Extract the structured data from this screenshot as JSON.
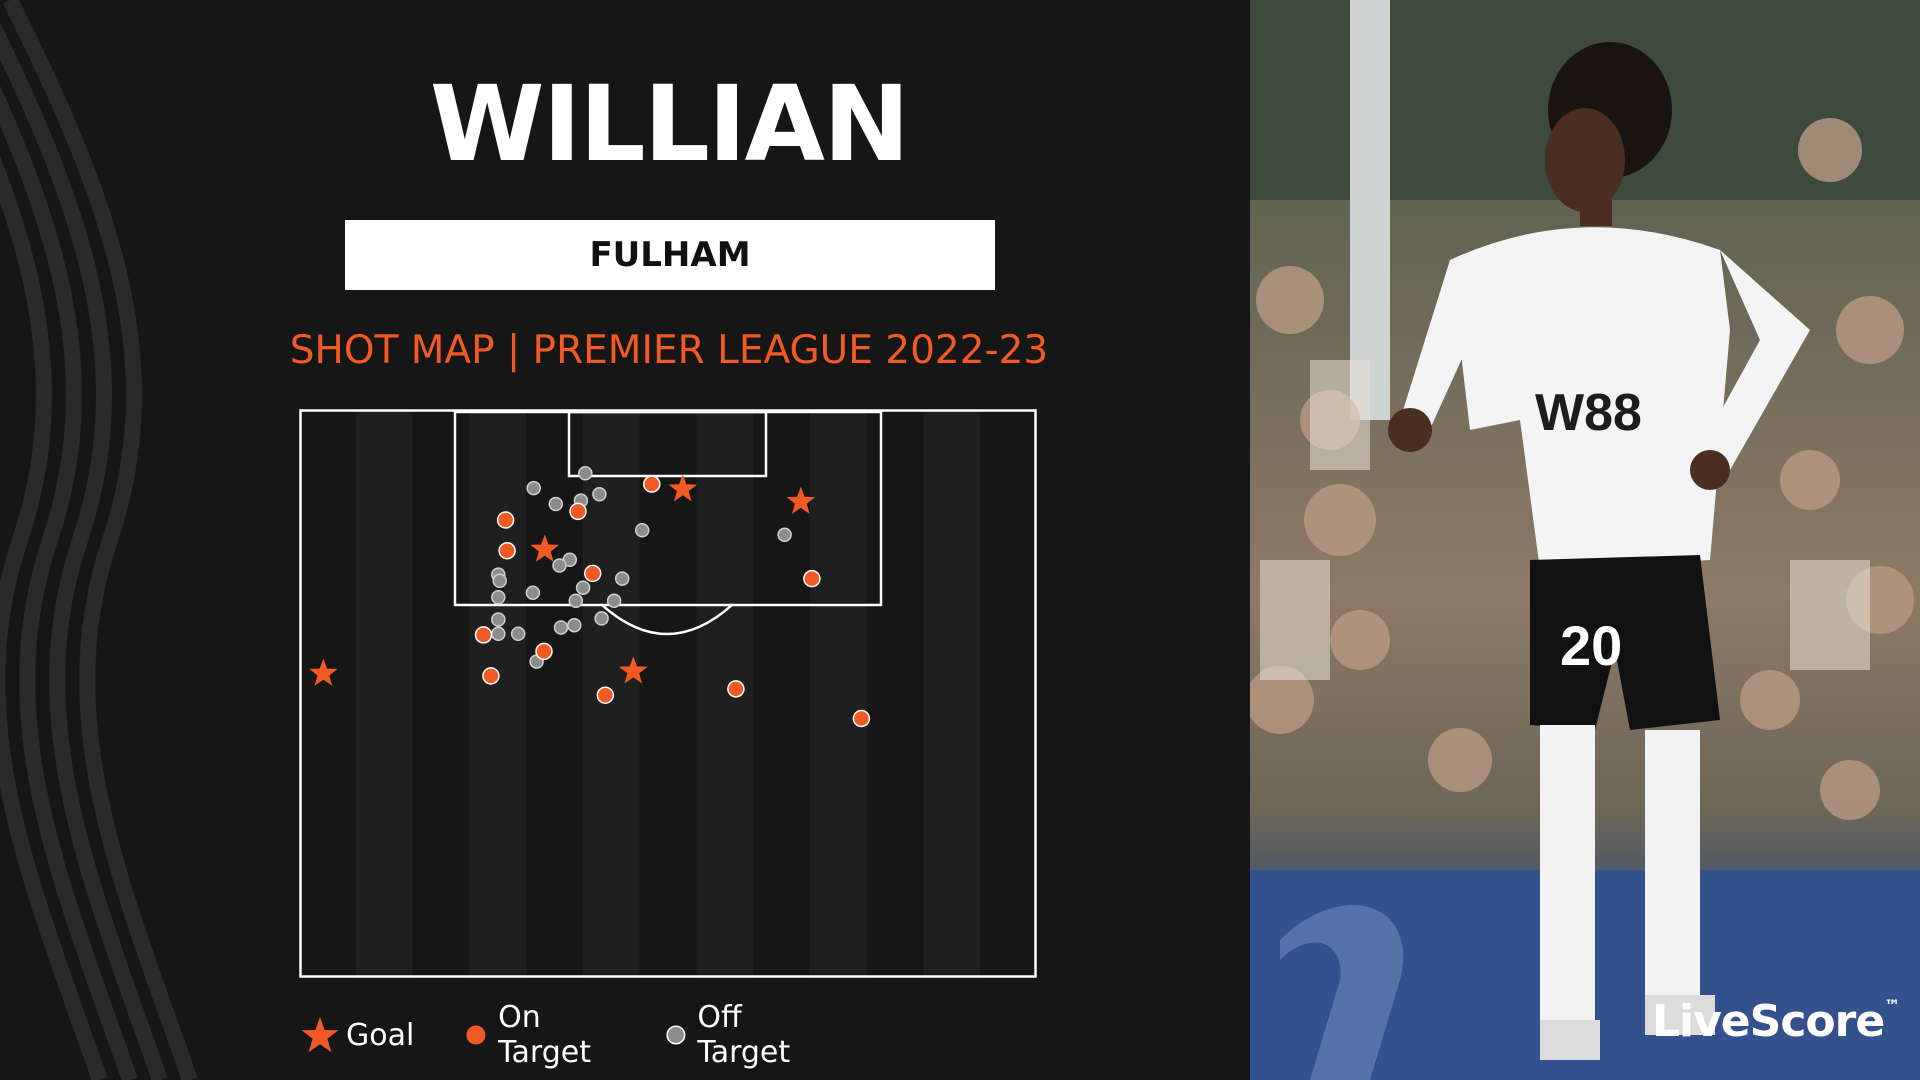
{
  "header": {
    "player_name": "WILLIAN",
    "team": "FULHAM",
    "subtitle": "SHOT MAP | PREMIER LEAGUE 2022-23"
  },
  "legend": [
    {
      "label": "Goal",
      "marker": "star",
      "color": "#f15a24"
    },
    {
      "label": "On Target",
      "marker": "circle",
      "color": "#f15a24"
    },
    {
      "label": "Off Target",
      "marker": "circle",
      "color": "#8c8c8c"
    }
  ],
  "branding": {
    "logo_text": "LiveScore",
    "trademark": "™"
  },
  "photo": {
    "shirt_number": "20",
    "sponsor": "W88"
  },
  "colors": {
    "accent": "#f15a24",
    "off_target": "#8c8c8c",
    "background": "#161616",
    "pitch_line": "#ffffff"
  },
  "chart_data": {
    "type": "scatter",
    "title": "SHOT MAP | PREMIER LEAGUE 2022-23",
    "xlabel": "",
    "ylabel": "",
    "xlim": [
      0,
      100
    ],
    "ylim": [
      0,
      100
    ],
    "grid": false,
    "legend_position": "bottom",
    "series": [
      {
        "name": "Goal",
        "marker": "star",
        "color": "#f15a24",
        "points": [
          {
            "x": 52.0,
            "y": 14.1
          },
          {
            "x": 68.0,
            "y": 16.3
          },
          {
            "x": 33.3,
            "y": 24.7
          },
          {
            "x": 45.3,
            "y": 46.1
          },
          {
            "x": 3.3,
            "y": 46.5
          }
        ]
      },
      {
        "name": "On Target",
        "marker": "circle",
        "color": "#f15a24",
        "points": [
          {
            "x": 47.8,
            "y": 13.2
          },
          {
            "x": 37.8,
            "y": 18.0
          },
          {
            "x": 28.0,
            "y": 19.5
          },
          {
            "x": 28.2,
            "y": 24.9
          },
          {
            "x": 39.8,
            "y": 28.9
          },
          {
            "x": 69.5,
            "y": 29.8
          },
          {
            "x": 25.0,
            "y": 39.7
          },
          {
            "x": 33.2,
            "y": 42.6
          },
          {
            "x": 26.0,
            "y": 46.9
          },
          {
            "x": 41.5,
            "y": 50.3
          },
          {
            "x": 59.2,
            "y": 49.2
          },
          {
            "x": 76.2,
            "y": 54.4
          }
        ]
      },
      {
        "name": "Off Target",
        "marker": "circle",
        "color": "#8c8c8c",
        "points": [
          {
            "x": 38.8,
            "y": 11.3
          },
          {
            "x": 31.8,
            "y": 13.9
          },
          {
            "x": 40.7,
            "y": 15.0
          },
          {
            "x": 34.8,
            "y": 16.7
          },
          {
            "x": 38.2,
            "y": 16.1
          },
          {
            "x": 46.5,
            "y": 21.3
          },
          {
            "x": 65.8,
            "y": 22.1
          },
          {
            "x": 36.7,
            "y": 26.5
          },
          {
            "x": 35.3,
            "y": 27.5
          },
          {
            "x": 27.0,
            "y": 29.1
          },
          {
            "x": 27.2,
            "y": 30.2
          },
          {
            "x": 43.8,
            "y": 29.8
          },
          {
            "x": 38.5,
            "y": 31.4
          },
          {
            "x": 31.7,
            "y": 32.3
          },
          {
            "x": 37.5,
            "y": 33.7
          },
          {
            "x": 27.0,
            "y": 33.1
          },
          {
            "x": 42.7,
            "y": 33.7
          },
          {
            "x": 41.0,
            "y": 36.8
          },
          {
            "x": 27.0,
            "y": 37.0
          },
          {
            "x": 37.3,
            "y": 38.0
          },
          {
            "x": 35.5,
            "y": 38.4
          },
          {
            "x": 29.7,
            "y": 39.5
          },
          {
            "x": 27.0,
            "y": 39.5
          },
          {
            "x": 32.2,
            "y": 44.4
          }
        ]
      }
    ]
  }
}
